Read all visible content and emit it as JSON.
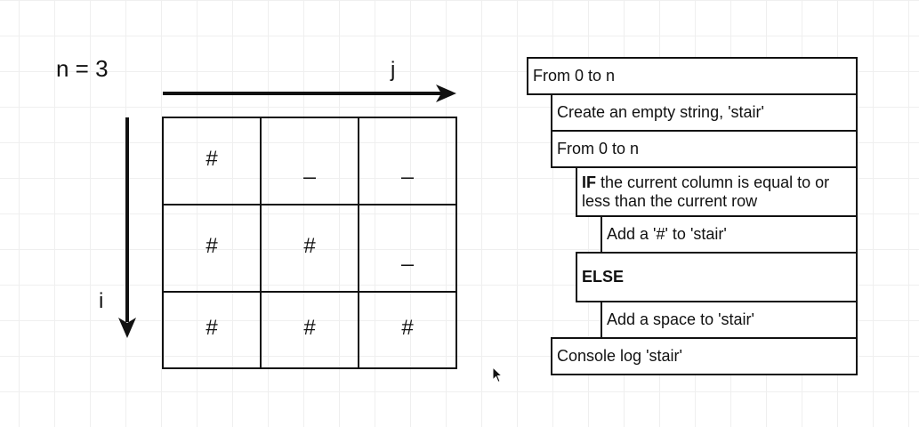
{
  "n_label": "n = 3",
  "axis": {
    "j_label": "j",
    "i_label": "i"
  },
  "grid": {
    "rows": [
      [
        "#",
        "_",
        "_"
      ],
      [
        "#",
        "#",
        "_"
      ],
      [
        "#",
        "#",
        "#"
      ]
    ]
  },
  "flow": {
    "loop_outer": "From 0 to n",
    "create_string": "Create an empty string, 'stair'",
    "loop_inner": "From 0 to n",
    "if_keyword": "IF",
    "if_condition": " the current column is equal to or less than the current row",
    "add_hash": "Add a '#' to 'stair'",
    "else_keyword": "ELSE",
    "add_space": "Add a space to 'stair'",
    "console_log": "Console log 'stair'"
  },
  "colors": {
    "line": "#111111",
    "grid_lines": "#efefef",
    "background": "#ffffff"
  },
  "icons": [
    "arrow-right-icon",
    "arrow-down-icon",
    "mouse-pointer-icon"
  ]
}
